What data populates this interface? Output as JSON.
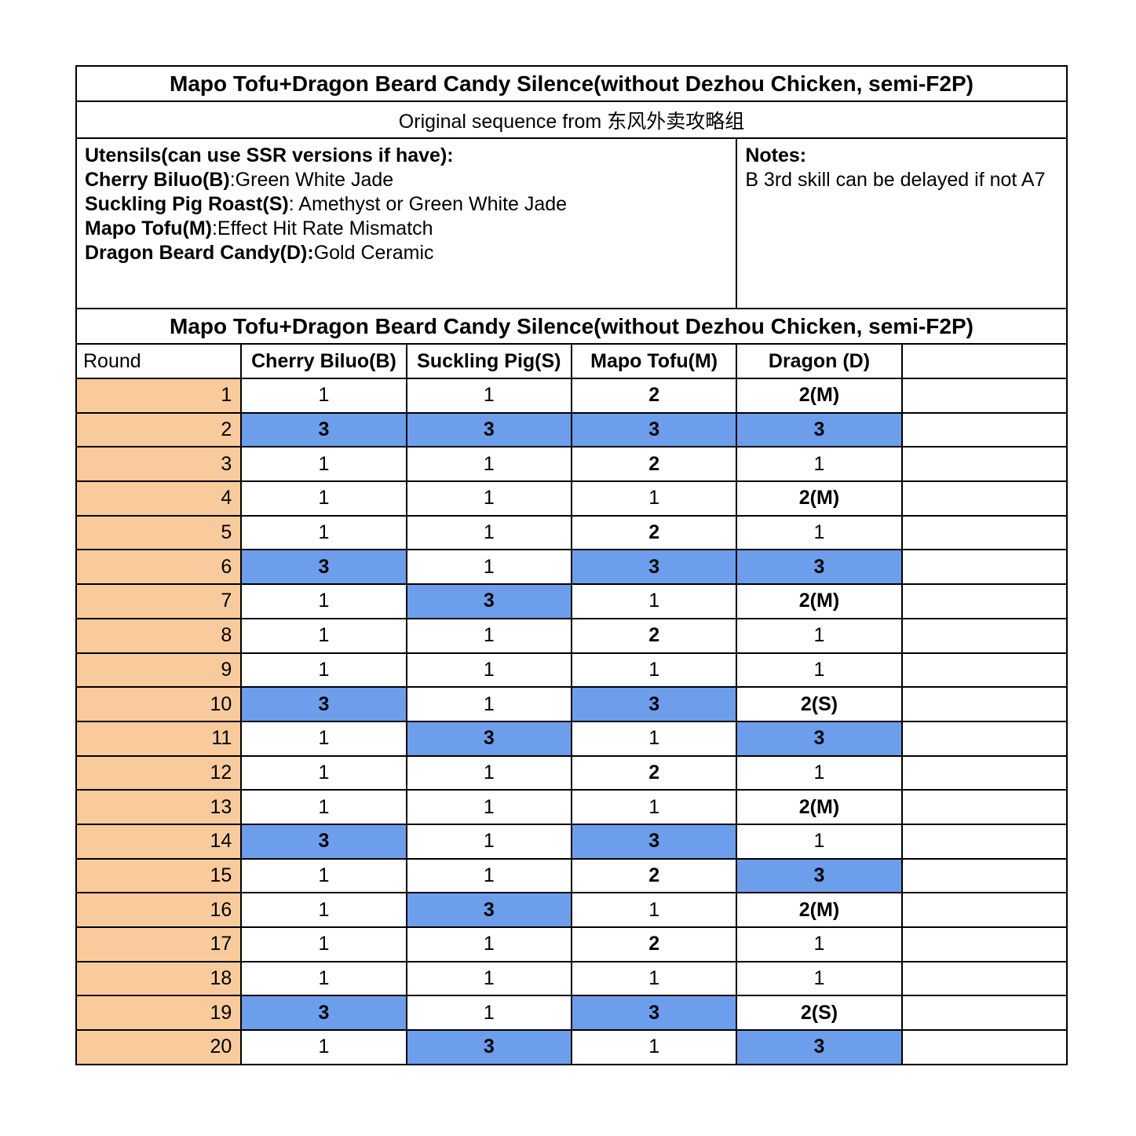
{
  "title": "Mapo Tofu+Dragon Beard Candy Silence(without Dezhou Chicken, semi-F2P)",
  "subtitle": "Original sequence from 东风外卖攻略组",
  "utensils": {
    "heading": "Utensils(can use SSR versions if have):",
    "items": [
      {
        "label": "Cherry Biluo(B)",
        "value": ":Green White Jade"
      },
      {
        "label": "Suckling Pig Roast(S)",
        "value": ": Amethyst or Green White Jade"
      },
      {
        "label": "Mapo Tofu(M)",
        "value": ":Effect Hit Rate Mismatch"
      },
      {
        "label": "Dragon Beard Candy(D):",
        "value": "Gold Ceramic"
      }
    ]
  },
  "notes": {
    "heading": "Notes:",
    "body": "B 3rd skill can be delayed if not A7"
  },
  "section_title": "Mapo Tofu+Dragon Beard Candy Silence(without Dezhou Chicken, semi-F2P)",
  "colors": {
    "round_bg": "#f9cb9c",
    "highlight_bg": "#6d9eeb",
    "border": "#000000"
  },
  "table": {
    "headers": [
      "Round",
      "Cherry Biluo(B)",
      "Suckling Pig(S)",
      "Mapo Tofu(M)",
      "Dragon (D)",
      ""
    ],
    "rows": [
      {
        "round": "1",
        "cells": [
          {
            "text": "1"
          },
          {
            "text": "1"
          },
          {
            "text": "2",
            "bold": true
          },
          {
            "text": "2(M)",
            "bold": true
          }
        ]
      },
      {
        "round": "2",
        "cells": [
          {
            "text": "3",
            "bold": true,
            "highlight": true
          },
          {
            "text": "3",
            "bold": true,
            "highlight": true
          },
          {
            "text": "3",
            "bold": true,
            "highlight": true
          },
          {
            "text": "3",
            "bold": true,
            "highlight": true
          }
        ]
      },
      {
        "round": "3",
        "cells": [
          {
            "text": "1"
          },
          {
            "text": "1"
          },
          {
            "text": "2",
            "bold": true
          },
          {
            "text": "1"
          }
        ]
      },
      {
        "round": "4",
        "cells": [
          {
            "text": "1"
          },
          {
            "text": "1"
          },
          {
            "text": "1"
          },
          {
            "text": "2(M)",
            "bold": true
          }
        ]
      },
      {
        "round": "5",
        "cells": [
          {
            "text": "1"
          },
          {
            "text": "1"
          },
          {
            "text": "2",
            "bold": true
          },
          {
            "text": "1"
          }
        ]
      },
      {
        "round": "6",
        "cells": [
          {
            "text": "3",
            "bold": true,
            "highlight": true
          },
          {
            "text": "1"
          },
          {
            "text": "3",
            "bold": true,
            "highlight": true
          },
          {
            "text": "3",
            "bold": true,
            "highlight": true
          }
        ]
      },
      {
        "round": "7",
        "cells": [
          {
            "text": "1"
          },
          {
            "text": "3",
            "bold": true,
            "highlight": true
          },
          {
            "text": "1"
          },
          {
            "text": "2(M)",
            "bold": true
          }
        ]
      },
      {
        "round": "8",
        "cells": [
          {
            "text": "1"
          },
          {
            "text": "1"
          },
          {
            "text": "2",
            "bold": true
          },
          {
            "text": "1"
          }
        ]
      },
      {
        "round": "9",
        "cells": [
          {
            "text": "1"
          },
          {
            "text": "1"
          },
          {
            "text": "1"
          },
          {
            "text": "1"
          }
        ]
      },
      {
        "round": "10",
        "cells": [
          {
            "text": "3",
            "bold": true,
            "highlight": true
          },
          {
            "text": "1"
          },
          {
            "text": "3",
            "bold": true,
            "highlight": true
          },
          {
            "text": "2(S)",
            "bold": true
          }
        ]
      },
      {
        "round": "11",
        "cells": [
          {
            "text": "1"
          },
          {
            "text": "3",
            "bold": true,
            "highlight": true
          },
          {
            "text": "1"
          },
          {
            "text": "3",
            "bold": true,
            "highlight": true
          }
        ]
      },
      {
        "round": "12",
        "cells": [
          {
            "text": "1"
          },
          {
            "text": "1"
          },
          {
            "text": "2",
            "bold": true
          },
          {
            "text": "1"
          }
        ]
      },
      {
        "round": "13",
        "cells": [
          {
            "text": "1"
          },
          {
            "text": "1"
          },
          {
            "text": "1"
          },
          {
            "text": "2(M)",
            "bold": true
          }
        ]
      },
      {
        "round": "14",
        "cells": [
          {
            "text": "3",
            "bold": true,
            "highlight": true
          },
          {
            "text": "1"
          },
          {
            "text": "3",
            "bold": true,
            "highlight": true
          },
          {
            "text": "1"
          }
        ]
      },
      {
        "round": "15",
        "cells": [
          {
            "text": "1"
          },
          {
            "text": "1"
          },
          {
            "text": "2",
            "bold": true
          },
          {
            "text": "3",
            "bold": true,
            "highlight": true
          }
        ]
      },
      {
        "round": "16",
        "cells": [
          {
            "text": "1"
          },
          {
            "text": "3",
            "bold": true,
            "highlight": true
          },
          {
            "text": "1"
          },
          {
            "text": "2(M)",
            "bold": true
          }
        ]
      },
      {
        "round": "17",
        "cells": [
          {
            "text": "1"
          },
          {
            "text": "1"
          },
          {
            "text": "2",
            "bold": true
          },
          {
            "text": "1"
          }
        ]
      },
      {
        "round": "18",
        "cells": [
          {
            "text": "1"
          },
          {
            "text": "1"
          },
          {
            "text": "1"
          },
          {
            "text": "1"
          }
        ]
      },
      {
        "round": "19",
        "cells": [
          {
            "text": "3",
            "bold": true,
            "highlight": true
          },
          {
            "text": "1"
          },
          {
            "text": "3",
            "bold": true,
            "highlight": true
          },
          {
            "text": "2(S)",
            "bold": true
          }
        ]
      },
      {
        "round": "20",
        "cells": [
          {
            "text": "1"
          },
          {
            "text": "3",
            "bold": true,
            "highlight": true
          },
          {
            "text": "1"
          },
          {
            "text": "3",
            "bold": true,
            "highlight": true
          }
        ]
      }
    ]
  }
}
